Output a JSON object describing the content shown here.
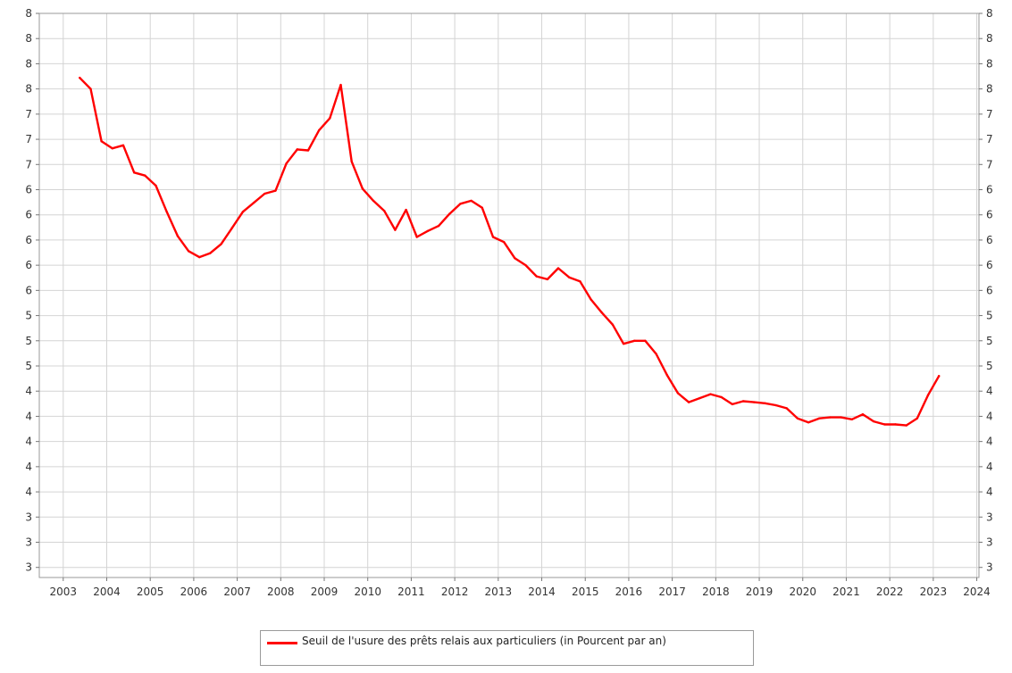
{
  "chart_data": {
    "type": "line",
    "title": "",
    "xlabel": "",
    "ylabel": "",
    "xlim": [
      2002.45,
      2024.05
    ],
    "ylim": [
      2.9,
      8.5
    ],
    "x_ticks": [
      "2003",
      "2004",
      "2005",
      "2006",
      "2007",
      "2008",
      "2009",
      "2010",
      "2011",
      "2012",
      "2013",
      "2014",
      "2015",
      "2016",
      "2017",
      "2018",
      "2019",
      "2020",
      "2021",
      "2022",
      "2023",
      "2024"
    ],
    "y_tick_values": [
      3.0,
      3.25,
      3.5,
      3.75,
      4.0,
      4.25,
      4.5,
      4.75,
      5.0,
      5.25,
      5.5,
      5.75,
      6.0,
      6.25,
      6.5,
      6.75,
      7.0,
      7.25,
      7.5,
      7.75,
      8.0,
      8.25,
      8.5
    ],
    "y_tick_labels": [
      "3",
      "3",
      "3",
      "4",
      "4",
      "4",
      "4",
      "4",
      "5",
      "5",
      "5",
      "6",
      "6",
      "6",
      "6",
      "6",
      "7",
      "7",
      "7",
      "8",
      "8",
      "8",
      "8"
    ],
    "grid": true,
    "legend": "bottom-center",
    "series": [
      {
        "name": "Seuil de l'usure des prêts relais aux particuliers (in Pourcent par an)",
        "color": "#ff0000",
        "points": [
          [
            2003.38,
            7.86
          ],
          [
            2003.63,
            7.75
          ],
          [
            2003.88,
            7.23
          ],
          [
            2004.13,
            7.16
          ],
          [
            2004.38,
            7.19
          ],
          [
            2004.63,
            6.92
          ],
          [
            2004.88,
            6.89
          ],
          [
            2005.13,
            6.79
          ],
          [
            2005.38,
            6.53
          ],
          [
            2005.63,
            6.29
          ],
          [
            2005.88,
            6.14
          ],
          [
            2006.13,
            6.08
          ],
          [
            2006.38,
            6.12
          ],
          [
            2006.63,
            6.21
          ],
          [
            2006.88,
            6.37
          ],
          [
            2007.13,
            6.53
          ],
          [
            2007.38,
            6.62
          ],
          [
            2007.63,
            6.71
          ],
          [
            2007.88,
            6.74
          ],
          [
            2008.13,
            7.01
          ],
          [
            2008.38,
            7.15
          ],
          [
            2008.63,
            7.14
          ],
          [
            2008.88,
            7.34
          ],
          [
            2009.13,
            7.46
          ],
          [
            2009.38,
            7.79
          ],
          [
            2009.63,
            7.03
          ],
          [
            2009.88,
            6.76
          ],
          [
            2010.13,
            6.64
          ],
          [
            2010.38,
            6.54
          ],
          [
            2010.63,
            6.35
          ],
          [
            2010.88,
            6.55
          ],
          [
            2011.13,
            6.28
          ],
          [
            2011.38,
            6.34
          ],
          [
            2011.63,
            6.39
          ],
          [
            2011.88,
            6.51
          ],
          [
            2012.13,
            6.61
          ],
          [
            2012.38,
            6.64
          ],
          [
            2012.63,
            6.57
          ],
          [
            2012.88,
            6.28
          ],
          [
            2013.13,
            6.23
          ],
          [
            2013.38,
            6.07
          ],
          [
            2013.63,
            6.0
          ],
          [
            2013.88,
            5.89
          ],
          [
            2014.13,
            5.86
          ],
          [
            2014.38,
            5.97
          ],
          [
            2014.63,
            5.88
          ],
          [
            2014.88,
            5.84
          ],
          [
            2015.13,
            5.66
          ],
          [
            2015.38,
            5.53
          ],
          [
            2015.63,
            5.41
          ],
          [
            2015.88,
            5.22
          ],
          [
            2016.13,
            5.25
          ],
          [
            2016.38,
            5.25
          ],
          [
            2016.63,
            5.12
          ],
          [
            2016.88,
            4.91
          ],
          [
            2017.13,
            4.73
          ],
          [
            2017.38,
            4.64
          ],
          [
            2017.63,
            4.68
          ],
          [
            2017.88,
            4.72
          ],
          [
            2018.13,
            4.69
          ],
          [
            2018.38,
            4.62
          ],
          [
            2018.63,
            4.65
          ],
          [
            2018.88,
            4.64
          ],
          [
            2019.13,
            4.63
          ],
          [
            2019.38,
            4.61
          ],
          [
            2019.63,
            4.58
          ],
          [
            2019.88,
            4.48
          ],
          [
            2020.13,
            4.44
          ],
          [
            2020.38,
            4.48
          ],
          [
            2020.63,
            4.49
          ],
          [
            2020.88,
            4.49
          ],
          [
            2021.13,
            4.47
          ],
          [
            2021.38,
            4.52
          ],
          [
            2021.63,
            4.45
          ],
          [
            2021.88,
            4.42
          ],
          [
            2022.13,
            4.42
          ],
          [
            2022.38,
            4.41
          ],
          [
            2022.63,
            4.48
          ],
          [
            2022.88,
            4.71
          ],
          [
            2023.13,
            4.9
          ]
        ]
      }
    ]
  }
}
